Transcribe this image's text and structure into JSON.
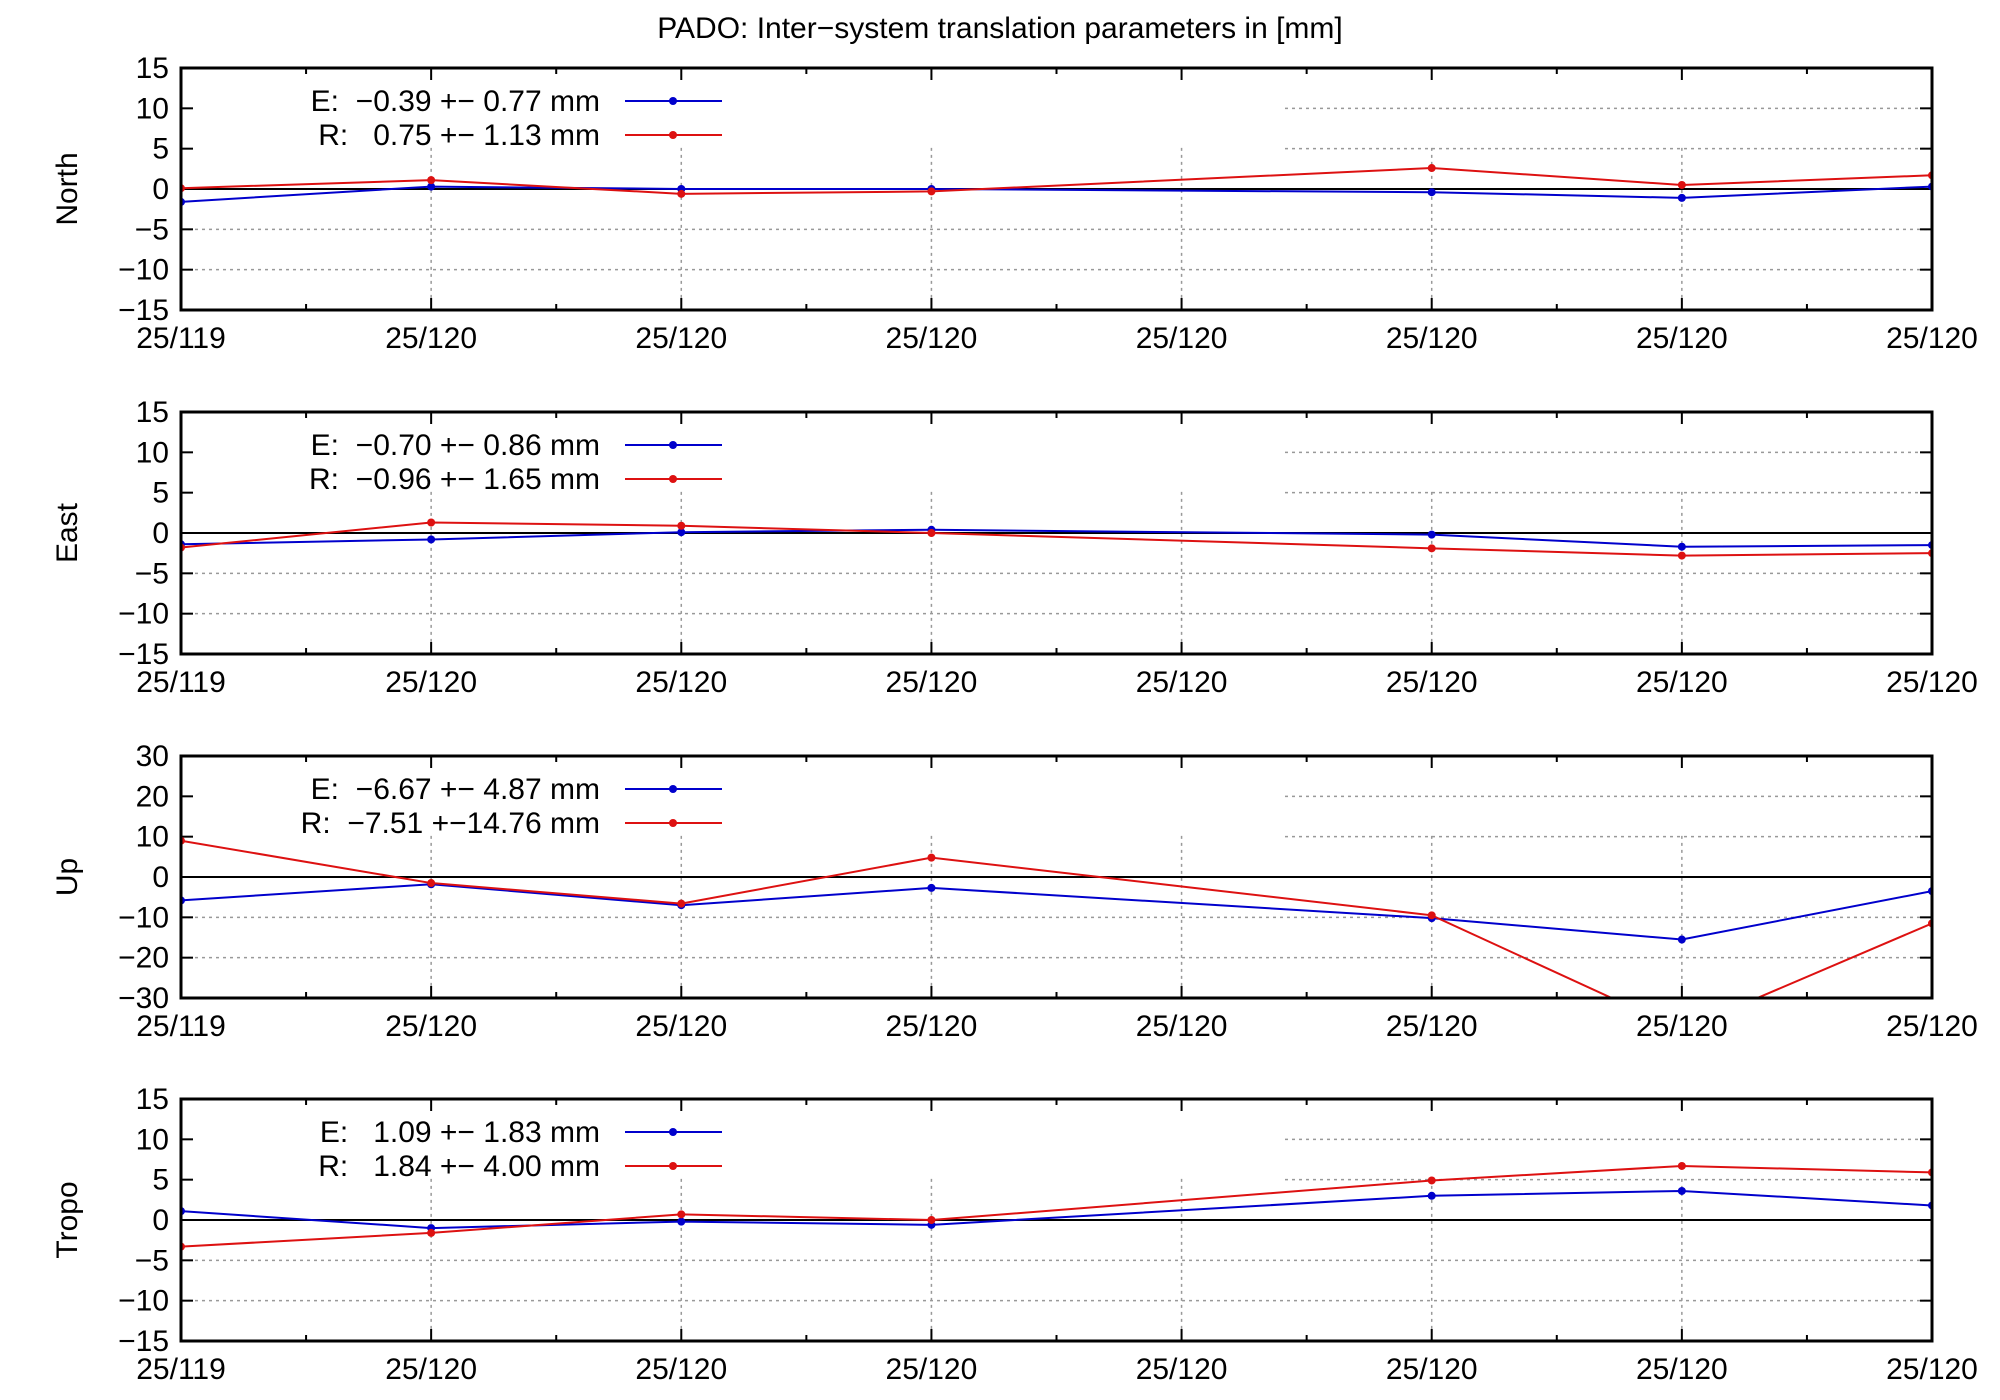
{
  "title": "PADO: Inter−system translation parameters in [mm]",
  "colors": {
    "E": "#0000cc",
    "R": "#dd1111",
    "grid": "#999999",
    "axis": "#000000"
  },
  "x_tick_labels": [
    "25/119",
    "25/120",
    "25/120",
    "25/120",
    "25/120",
    "25/120",
    "25/120",
    "25/120"
  ],
  "chart_data": [
    {
      "type": "line",
      "ylabel": "North",
      "ylim": [
        -15,
        15
      ],
      "yticks": [
        15,
        10,
        5,
        0,
        -5,
        -10,
        -15
      ],
      "x": [
        0,
        1,
        2,
        3,
        4,
        5,
        6,
        7
      ],
      "series": [
        {
          "name": "E",
          "legend": "E:  −0.39 +− 0.77 mm",
          "x": [
            0,
            1,
            2,
            3,
            5,
            6,
            7
          ],
          "values": [
            -1.6,
            0.3,
            0.0,
            0.0,
            -0.4,
            -1.1,
            0.3
          ]
        },
        {
          "name": "R",
          "legend": "R:   0.75 +− 1.13 mm",
          "x": [
            0,
            1,
            2,
            3,
            5,
            6,
            7
          ],
          "values": [
            0.1,
            1.1,
            -0.6,
            -0.3,
            2.6,
            0.5,
            1.7
          ]
        }
      ]
    },
    {
      "type": "line",
      "ylabel": "East",
      "ylim": [
        -15,
        15
      ],
      "yticks": [
        15,
        10,
        5,
        0,
        -5,
        -10,
        -15
      ],
      "x": [
        0,
        1,
        2,
        3,
        4,
        5,
        6,
        7
      ],
      "series": [
        {
          "name": "E",
          "legend": "E:  −0.70 +− 0.86 mm",
          "x": [
            0,
            1,
            2,
            3,
            5,
            6,
            7
          ],
          "values": [
            -1.4,
            -0.8,
            0.1,
            0.4,
            -0.2,
            -1.7,
            -1.5
          ]
        },
        {
          "name": "R",
          "legend": "R:  −0.96 +− 1.65 mm",
          "x": [
            0,
            1,
            2,
            3,
            5,
            6,
            7
          ],
          "values": [
            -1.8,
            1.3,
            0.9,
            0.0,
            -1.9,
            -2.8,
            -2.5
          ]
        }
      ]
    },
    {
      "type": "line",
      "ylabel": "Up",
      "ylim": [
        -30,
        30
      ],
      "yticks": [
        30,
        20,
        10,
        0,
        -10,
        -20,
        -30
      ],
      "x": [
        0,
        1,
        2,
        3,
        4,
        5,
        6,
        7
      ],
      "series": [
        {
          "name": "E",
          "legend": "E:  −6.67 +− 4.87 mm",
          "x": [
            0,
            1,
            2,
            3,
            5,
            6,
            7
          ],
          "values": [
            -5.8,
            -1.8,
            -7.0,
            -2.7,
            -10.2,
            -15.5,
            -3.5
          ]
        },
        {
          "name": "R",
          "legend": "R:  −7.51 +−14.76 mm",
          "x": [
            0,
            1,
            2,
            3,
            5,
            6,
            7
          ],
          "values": [
            9.0,
            -1.5,
            -6.6,
            4.8,
            -9.5,
            -38.0,
            -11.5
          ]
        }
      ]
    },
    {
      "type": "line",
      "ylabel": "Tropo",
      "ylim": [
        -15,
        15
      ],
      "yticks": [
        15,
        10,
        5,
        0,
        -5,
        -10,
        -15
      ],
      "x": [
        0,
        1,
        2,
        3,
        4,
        5,
        6,
        7
      ],
      "series": [
        {
          "name": "E",
          "legend": "E:   1.09 +− 1.83 mm",
          "x": [
            0,
            1,
            2,
            3,
            5,
            6,
            7
          ],
          "values": [
            1.1,
            -1.0,
            -0.2,
            -0.6,
            3.0,
            3.6,
            1.8
          ]
        },
        {
          "name": "R",
          "legend": "R:   1.84 +− 4.00 mm",
          "x": [
            0,
            1,
            2,
            3,
            5,
            6,
            7
          ],
          "values": [
            -3.3,
            -1.6,
            0.7,
            0.0,
            4.9,
            6.7,
            5.9
          ]
        }
      ]
    }
  ]
}
